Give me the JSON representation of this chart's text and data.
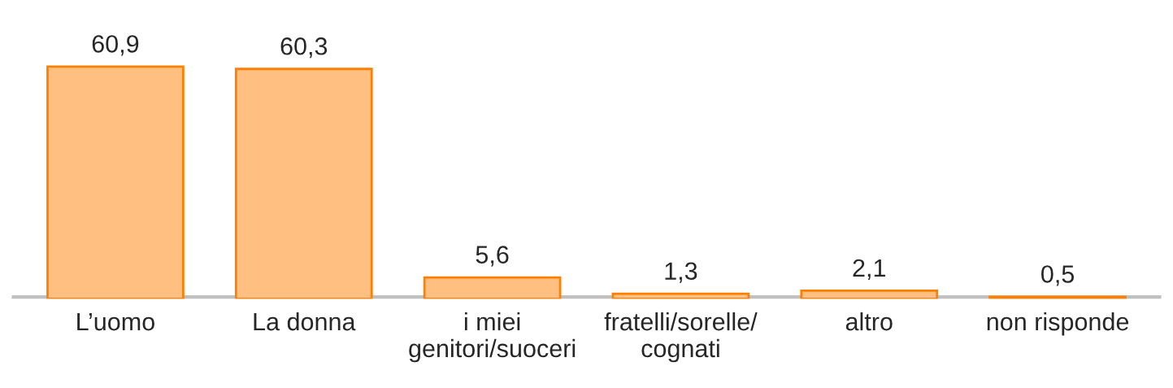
{
  "chart_data": {
    "type": "bar",
    "categories": [
      "L’uomo",
      "La donna",
      "i miei\ngenitori/suoceri",
      "fratelli/sorelle/\ncognati",
      "altro",
      "non risponde"
    ],
    "values": [
      60.9,
      60.3,
      5.6,
      1.3,
      2.1,
      0.5
    ],
    "value_labels": [
      "60,9",
      "60,3",
      "5,6",
      "1,3",
      "2,1",
      "0,5"
    ],
    "color": "#ffbf80",
    "grid": false,
    "legend": false
  }
}
